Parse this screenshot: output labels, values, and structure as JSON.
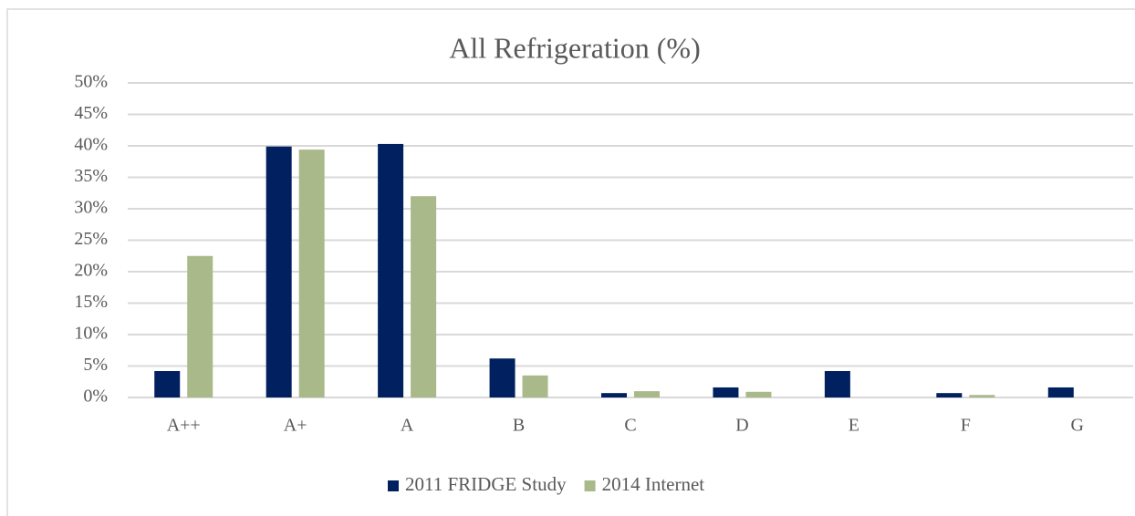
{
  "chart_data": {
    "type": "bar",
    "title": "All Refrigeration (%)",
    "categories": [
      "A++",
      "A+",
      "A",
      "B",
      "C",
      "D",
      "E",
      "F",
      "G"
    ],
    "series": [
      {
        "name": "2011 FRIDGE Study",
        "color": "#002060",
        "values": [
          4.2,
          39.9,
          40.3,
          6.2,
          0.7,
          1.6,
          4.2,
          0.7,
          1.6
        ]
      },
      {
        "name": "2014 Internet",
        "color": "#a9b98a",
        "values": [
          22.5,
          39.4,
          32.0,
          3.5,
          1.0,
          0.9,
          0,
          0.4,
          0
        ]
      }
    ],
    "ylim": [
      0,
      50
    ],
    "yticks": [
      {
        "value": 0,
        "label": "0%"
      },
      {
        "value": 5,
        "label": "5%"
      },
      {
        "value": 10,
        "label": "10%"
      },
      {
        "value": 15,
        "label": "15%"
      },
      {
        "value": 20,
        "label": "20%"
      },
      {
        "value": 25,
        "label": "25%"
      },
      {
        "value": 30,
        "label": "30%"
      },
      {
        "value": 35,
        "label": "35%"
      },
      {
        "value": 40,
        "label": "40%"
      },
      {
        "value": 45,
        "label": "45%"
      },
      {
        "value": 50,
        "label": "50%"
      }
    ],
    "grid": true,
    "legend": "bottom"
  }
}
